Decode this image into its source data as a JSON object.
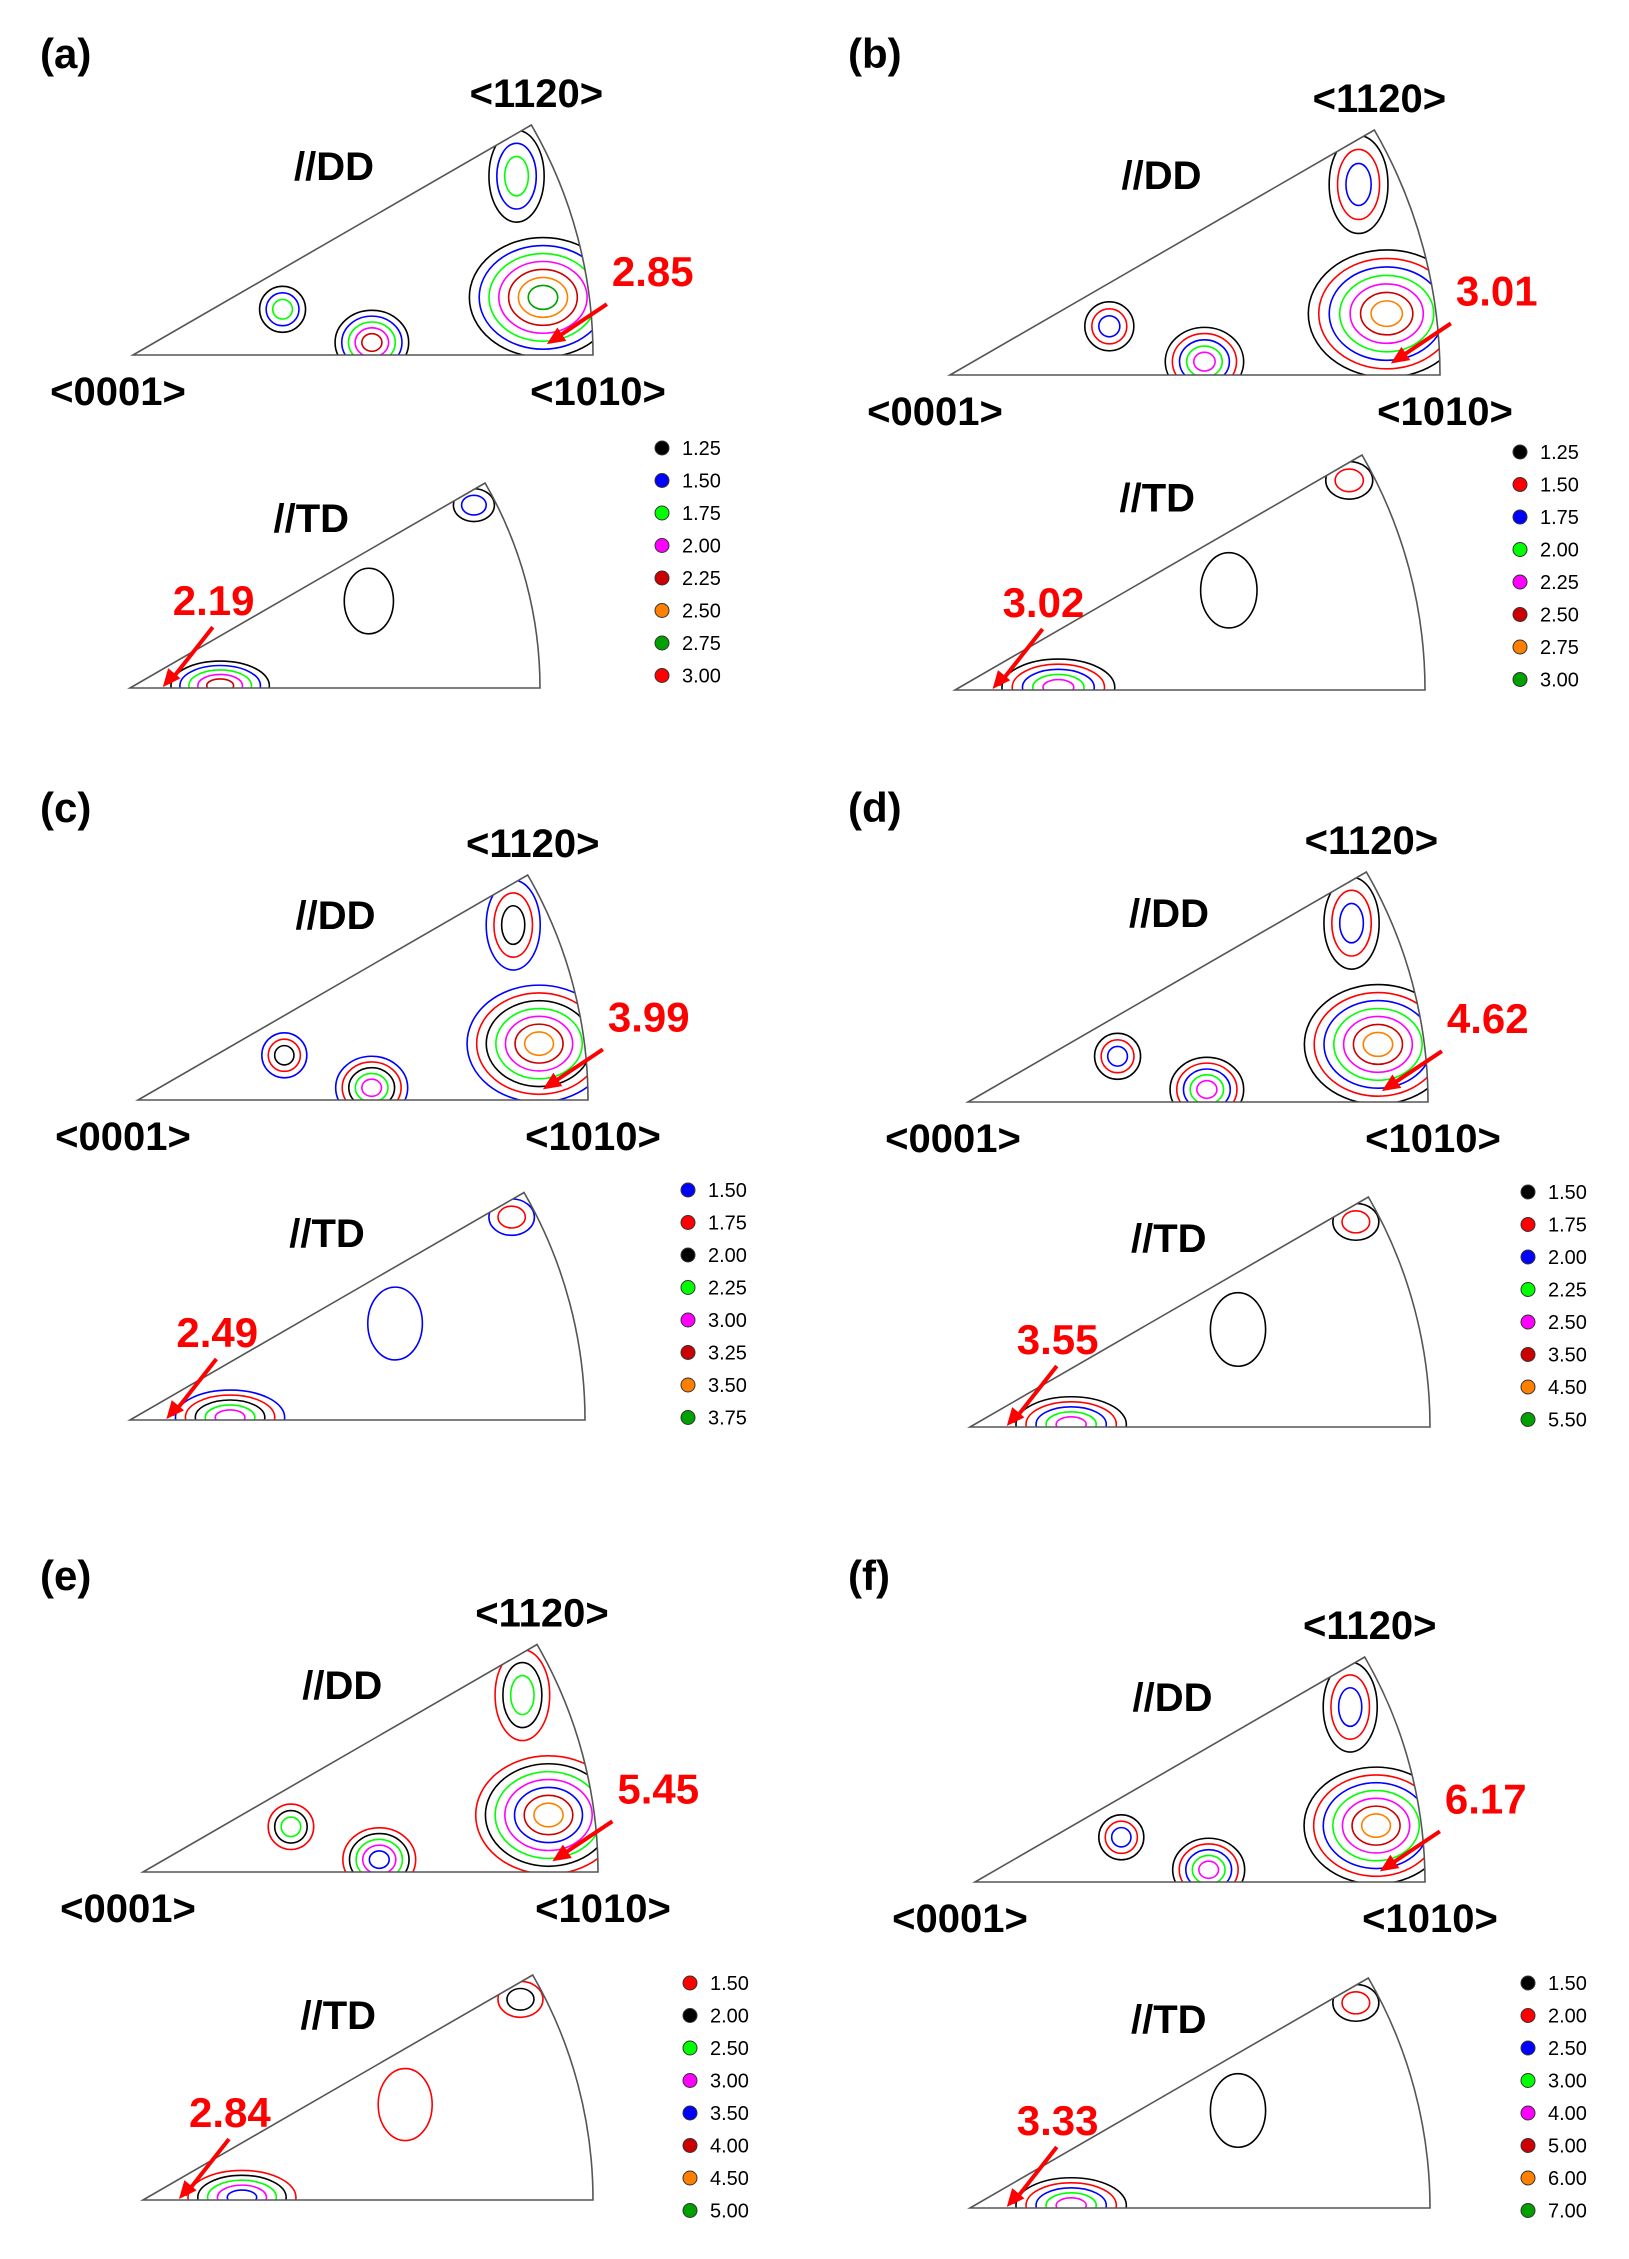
{
  "figure": {
    "colors": {
      "black": "#000000",
      "red": "#ff0000",
      "blue": "#0000ff",
      "lime": "#00ff00",
      "magenta": "#ff00ff",
      "darkred": "#cc0000",
      "orange": "#ff8000",
      "green": "#00a000",
      "annotation": "#ff0000",
      "outline": "#555555"
    },
    "panels": [
      {
        "label": "(a)",
        "dd": {
          "title": "//DD",
          "corner_0001": "<0001>",
          "corner_1010": "<1010>",
          "corner_1120": "<1120>",
          "max": "2.85"
        },
        "td": {
          "title": "//TD",
          "max": "2.19"
        },
        "legend": [
          {
            "value": "1.25",
            "color": "black"
          },
          {
            "value": "1.50",
            "color": "blue"
          },
          {
            "value": "1.75",
            "color": "lime"
          },
          {
            "value": "2.00",
            "color": "magenta"
          },
          {
            "value": "2.25",
            "color": "darkred"
          },
          {
            "value": "2.50",
            "color": "orange"
          },
          {
            "value": "2.75",
            "color": "green"
          },
          {
            "value": "3.00",
            "color": "red"
          }
        ]
      },
      {
        "label": "(b)",
        "dd": {
          "title": "//DD",
          "corner_0001": "<0001>",
          "corner_1010": "<1010>",
          "corner_1120": "<1120>",
          "max": "3.01"
        },
        "td": {
          "title": "//TD",
          "max": "3.02"
        },
        "legend": [
          {
            "value": "1.25",
            "color": "black"
          },
          {
            "value": "1.50",
            "color": "red"
          },
          {
            "value": "1.75",
            "color": "blue"
          },
          {
            "value": "2.00",
            "color": "lime"
          },
          {
            "value": "2.25",
            "color": "magenta"
          },
          {
            "value": "2.50",
            "color": "darkred"
          },
          {
            "value": "2.75",
            "color": "orange"
          },
          {
            "value": "3.00",
            "color": "green"
          }
        ]
      },
      {
        "label": "(c)",
        "dd": {
          "title": "//DD",
          "corner_0001": "<0001>",
          "corner_1010": "<1010>",
          "corner_1120": "<1120>",
          "max": "3.99"
        },
        "td": {
          "title": "//TD",
          "max": "2.49"
        },
        "legend": [
          {
            "value": "1.50",
            "color": "blue"
          },
          {
            "value": "1.75",
            "color": "red"
          },
          {
            "value": "2.00",
            "color": "black"
          },
          {
            "value": "2.25",
            "color": "lime"
          },
          {
            "value": "3.00",
            "color": "magenta"
          },
          {
            "value": "3.25",
            "color": "darkred"
          },
          {
            "value": "3.50",
            "color": "orange"
          },
          {
            "value": "3.75",
            "color": "green"
          }
        ]
      },
      {
        "label": "(d)",
        "dd": {
          "title": "//DD",
          "corner_0001": "<0001>",
          "corner_1010": "<1010>",
          "corner_1120": "<1120>",
          "max": "4.62"
        },
        "td": {
          "title": "//TD",
          "max": "3.55"
        },
        "legend": [
          {
            "value": "1.50",
            "color": "black"
          },
          {
            "value": "1.75",
            "color": "red"
          },
          {
            "value": "2.00",
            "color": "blue"
          },
          {
            "value": "2.25",
            "color": "lime"
          },
          {
            "value": "2.50",
            "color": "magenta"
          },
          {
            "value": "3.50",
            "color": "darkred"
          },
          {
            "value": "4.50",
            "color": "orange"
          },
          {
            "value": "5.50",
            "color": "green"
          }
        ]
      },
      {
        "label": "(e)",
        "dd": {
          "title": "//DD",
          "corner_0001": "<0001>",
          "corner_1010": "<1010>",
          "corner_1120": "<1120>",
          "max": "5.45"
        },
        "td": {
          "title": "//TD",
          "max": "2.84"
        },
        "legend": [
          {
            "value": "1.50",
            "color": "red"
          },
          {
            "value": "2.00",
            "color": "black"
          },
          {
            "value": "2.50",
            "color": "lime"
          },
          {
            "value": "3.00",
            "color": "magenta"
          },
          {
            "value": "3.50",
            "color": "blue"
          },
          {
            "value": "4.00",
            "color": "darkred"
          },
          {
            "value": "4.50",
            "color": "orange"
          },
          {
            "value": "5.00",
            "color": "green"
          }
        ]
      },
      {
        "label": "(f)",
        "dd": {
          "title": "//DD",
          "corner_0001": "<0001>",
          "corner_1010": "<1010>",
          "corner_1120": "<1120>",
          "max": "6.17"
        },
        "td": {
          "title": "//TD",
          "max": "3.33"
        },
        "legend": [
          {
            "value": "1.50",
            "color": "black"
          },
          {
            "value": "2.00",
            "color": "red"
          },
          {
            "value": "2.50",
            "color": "blue"
          },
          {
            "value": "3.00",
            "color": "lime"
          },
          {
            "value": "4.00",
            "color": "magenta"
          },
          {
            "value": "5.00",
            "color": "darkred"
          },
          {
            "value": "6.00",
            "color": "orange"
          },
          {
            "value": "7.00",
            "color": "green"
          }
        ]
      }
    ]
  }
}
